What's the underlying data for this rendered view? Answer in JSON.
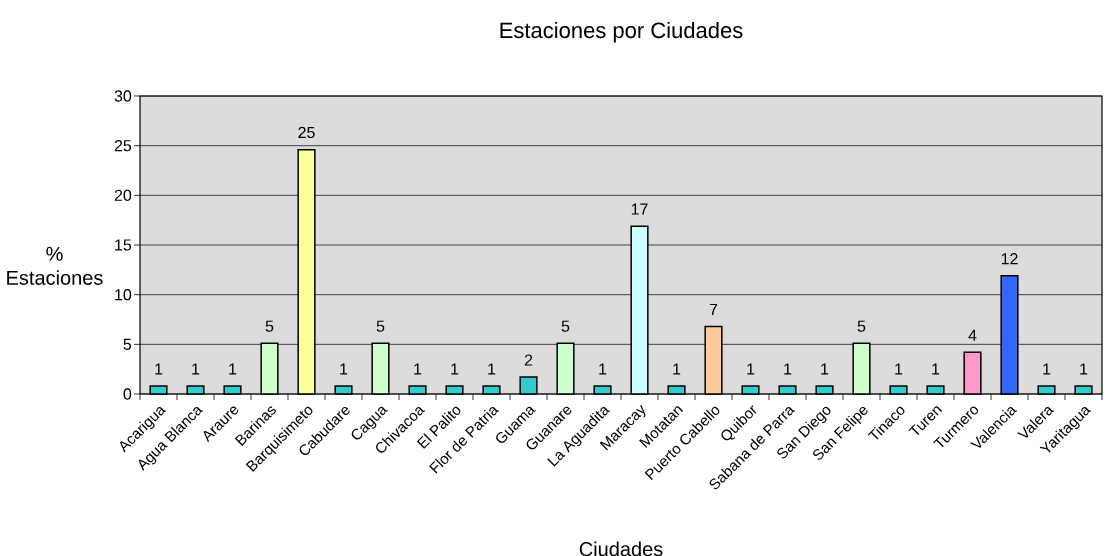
{
  "chart_data": {
    "type": "bar",
    "title": "Estaciones por Ciudades",
    "xlabel": "Ciudades",
    "ylabel": "% Estaciones",
    "categories": [
      "Acarigua",
      "Agua Blanca",
      "Araure",
      "Barinas",
      "Barquisimeto",
      "Cabudare",
      "Cagua",
      "Chivacoa",
      "El Palito",
      "Flor de Patria",
      "Guama",
      "Guanare",
      "La Aguadita",
      "Maracay",
      "Motatan",
      "Puerto Cabello",
      "Quibor",
      "Sabana de Parra",
      "San Diego",
      "San Felipe",
      "Tinaco",
      "Turen",
      "Turmero",
      "Valencia",
      "Valera",
      "Yaritagua"
    ],
    "values": [
      0.8,
      0.8,
      0.8,
      5.1,
      24.6,
      0.8,
      5.1,
      0.8,
      0.8,
      0.8,
      1.7,
      5.1,
      0.8,
      16.9,
      0.8,
      6.8,
      0.8,
      0.8,
      0.8,
      5.1,
      0.8,
      0.8,
      4.2,
      11.9,
      0.8,
      0.8
    ],
    "value_labels": [
      "1",
      "1",
      "1",
      "5",
      "25",
      "1",
      "5",
      "1",
      "1",
      "1",
      "2",
      "5",
      "1",
      "17",
      "1",
      "7",
      "1",
      "1",
      "1",
      "5",
      "1",
      "1",
      "4",
      "12",
      "1",
      "1"
    ],
    "colors": [
      "#33cccc",
      "#33cccc",
      "#33cccc",
      "#ccffcc",
      "#ffff99",
      "#33cccc",
      "#ccffcc",
      "#33cccc",
      "#33cccc",
      "#33cccc",
      "#33cccc",
      "#ccffcc",
      "#33cccc",
      "#ccffff",
      "#33cccc",
      "#ffcc99",
      "#33cccc",
      "#33cccc",
      "#33cccc",
      "#ccffcc",
      "#33cccc",
      "#33cccc",
      "#ff99cc",
      "#3366ff",
      "#33cccc",
      "#33cccc"
    ],
    "ylim": [
      0,
      30
    ],
    "yticks": [
      0,
      5,
      10,
      15,
      20,
      25,
      30
    ],
    "grid": "y"
  }
}
